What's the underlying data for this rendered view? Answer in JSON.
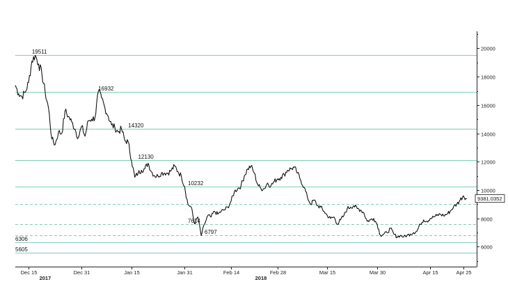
{
  "chart_data": {
    "type": "line",
    "title": "",
    "xlabel": "",
    "ylabel": "",
    "ylim": [
      4600,
      21200
    ],
    "y_ticks": [
      6000,
      8000,
      10000,
      12000,
      14000,
      16000,
      18000,
      20000
    ],
    "x_ticks": [
      {
        "date": "2017-12-15",
        "label": "Dec 15"
      },
      {
        "date": "2017-12-31",
        "label": "Dec 31"
      },
      {
        "date": "2018-01-15",
        "label": "Jan 15"
      },
      {
        "date": "2018-01-31",
        "label": "Jan 31"
      },
      {
        "date": "2018-02-14",
        "label": "Feb 14"
      },
      {
        "date": "2018-02-28",
        "label": "Feb 28"
      },
      {
        "date": "2018-03-15",
        "label": "Mar 15"
      },
      {
        "date": "2018-03-30",
        "label": "Mar 30"
      },
      {
        "date": "2018-04-15",
        "label": "Apr 15"
      },
      {
        "date": "2018-04-25",
        "label": "Apr 25"
      }
    ],
    "x_range": [
      "2017-12-11",
      "2018-04-29"
    ],
    "year_labels": [
      {
        "date": "2017-12-20",
        "label": "2017"
      },
      {
        "date": "2018-02-23",
        "label": "2018"
      }
    ],
    "levels": [
      {
        "value": 19511,
        "label": "19511",
        "style": "solid",
        "label_at": "2017-12-16"
      },
      {
        "value": 16932,
        "label": "16932",
        "style": "solid",
        "label_at": "2018-01-05"
      },
      {
        "value": 14320,
        "label": "14320",
        "style": "solid",
        "label_at": "2018-01-14"
      },
      {
        "value": 12130,
        "label": "12130",
        "style": "solid",
        "label_at": "2018-01-17"
      },
      {
        "value": 10232,
        "label": "10232",
        "style": "solid",
        "label_at": "2018-02-01"
      },
      {
        "value": 9020,
        "label": "",
        "style": "dashed",
        "label_at": ""
      },
      {
        "value": 7614,
        "label": "7614",
        "style": "dashed",
        "label_at": "2018-02-01"
      },
      {
        "value": 6797,
        "label": "6797",
        "style": "dashed",
        "label_at": "2018-02-06"
      },
      {
        "value": 6306,
        "label": "6306",
        "style": "solid",
        "label_at": "2017-12-11"
      },
      {
        "value": 5605,
        "label": "5605",
        "style": "solid",
        "label_at": "2017-12-11"
      }
    ],
    "last_value": "9381.0352",
    "series": [
      {
        "x": [
          "2017-12-11",
          "2017-12-12",
          "2017-12-13",
          "2017-12-14",
          "2017-12-15",
          "2017-12-16",
          "2017-12-17",
          "2017-12-18",
          "2017-12-19",
          "2017-12-20",
          "2017-12-21",
          "2017-12-22",
          "2017-12-23",
          "2017-12-24",
          "2017-12-25",
          "2017-12-26",
          "2017-12-27",
          "2017-12-28",
          "2017-12-29",
          "2017-12-30",
          "2017-12-31",
          "2018-01-01",
          "2018-01-02",
          "2018-01-03",
          "2018-01-04",
          "2018-01-05",
          "2018-01-06",
          "2018-01-07",
          "2018-01-08",
          "2018-01-09",
          "2018-01-10",
          "2018-01-11",
          "2018-01-12",
          "2018-01-13",
          "2018-01-14",
          "2018-01-15",
          "2018-01-16",
          "2018-01-17",
          "2018-01-18",
          "2018-01-19",
          "2018-01-20",
          "2018-01-21",
          "2018-01-22",
          "2018-01-23",
          "2018-01-24",
          "2018-01-25",
          "2018-01-26",
          "2018-01-27",
          "2018-01-28",
          "2018-01-29",
          "2018-01-30",
          "2018-01-31",
          "2018-02-01",
          "2018-02-02",
          "2018-02-03",
          "2018-02-04",
          "2018-02-05",
          "2018-02-06",
          "2018-02-07",
          "2018-02-08",
          "2018-02-09",
          "2018-02-10",
          "2018-02-11",
          "2018-02-12",
          "2018-02-13",
          "2018-02-14",
          "2018-02-15",
          "2018-02-16",
          "2018-02-17",
          "2018-02-18",
          "2018-02-19",
          "2018-02-20",
          "2018-02-21",
          "2018-02-22",
          "2018-02-23",
          "2018-02-24",
          "2018-02-25",
          "2018-02-26",
          "2018-02-27",
          "2018-02-28",
          "2018-03-01",
          "2018-03-02",
          "2018-03-03",
          "2018-03-04",
          "2018-03-05",
          "2018-03-06",
          "2018-03-07",
          "2018-03-08",
          "2018-03-09",
          "2018-03-10",
          "2018-03-11",
          "2018-03-12",
          "2018-03-13",
          "2018-03-14",
          "2018-03-15",
          "2018-03-16",
          "2018-03-17",
          "2018-03-18",
          "2018-03-19",
          "2018-03-20",
          "2018-03-21",
          "2018-03-22",
          "2018-03-23",
          "2018-03-24",
          "2018-03-25",
          "2018-03-26",
          "2018-03-27",
          "2018-03-28",
          "2018-03-29",
          "2018-03-30",
          "2018-03-31",
          "2018-04-01",
          "2018-04-02",
          "2018-04-03",
          "2018-04-04",
          "2018-04-05",
          "2018-04-06",
          "2018-04-07",
          "2018-04-08",
          "2018-04-09",
          "2018-04-10",
          "2018-04-11",
          "2018-04-12",
          "2018-04-13",
          "2018-04-14",
          "2018-04-15",
          "2018-04-16",
          "2018-04-17",
          "2018-04-18",
          "2018-04-19",
          "2018-04-20",
          "2018-04-21",
          "2018-04-22",
          "2018-04-23",
          "2018-04-24",
          "2018-04-25",
          "2018-04-26"
        ],
        "values": [
          17400,
          16800,
          16600,
          16900,
          17600,
          19100,
          19511,
          18900,
          18200,
          16900,
          15800,
          13600,
          13200,
          14100,
          14000,
          15600,
          15200,
          14800,
          14300,
          13700,
          14500,
          13800,
          14900,
          15000,
          15100,
          16932,
          16500,
          15800,
          15200,
          14600,
          14400,
          14100,
          14320,
          13500,
          13400,
          12100,
          10900,
          11200,
          11400,
          11500,
          11900,
          11300,
          11000,
          11000,
          11200,
          11200,
          11200,
          11400,
          11700,
          11300,
          11000,
          10232,
          9000,
          8800,
          7614,
          8100,
          6797,
          7600,
          8200,
          8100,
          8500,
          8300,
          8500,
          8600,
          8800,
          9200,
          9900,
          10100,
          10300,
          11000,
          11500,
          11700,
          11200,
          10400,
          10100,
          10100,
          10500,
          10300,
          10600,
          10800,
          10900,
          11100,
          11400,
          11500,
          11600,
          11200,
          10700,
          10200,
          9500,
          9000,
          9300,
          8900,
          8800,
          8500,
          8200,
          8000,
          8100,
          7600,
          7900,
          8200,
          8700,
          8800,
          8900,
          8700,
          8600,
          8400,
          7800,
          7900,
          8000,
          7600,
          6800,
          6900,
          7000,
          7300,
          6900,
          6700,
          6800,
          6700,
          6800,
          6900,
          7000,
          7100,
          7600,
          7900,
          7800,
          8000,
          8100,
          8200,
          8300,
          8200,
          8300,
          8500,
          8800,
          9000,
          9300,
          9600,
          9381
        ]
      }
    ]
  }
}
